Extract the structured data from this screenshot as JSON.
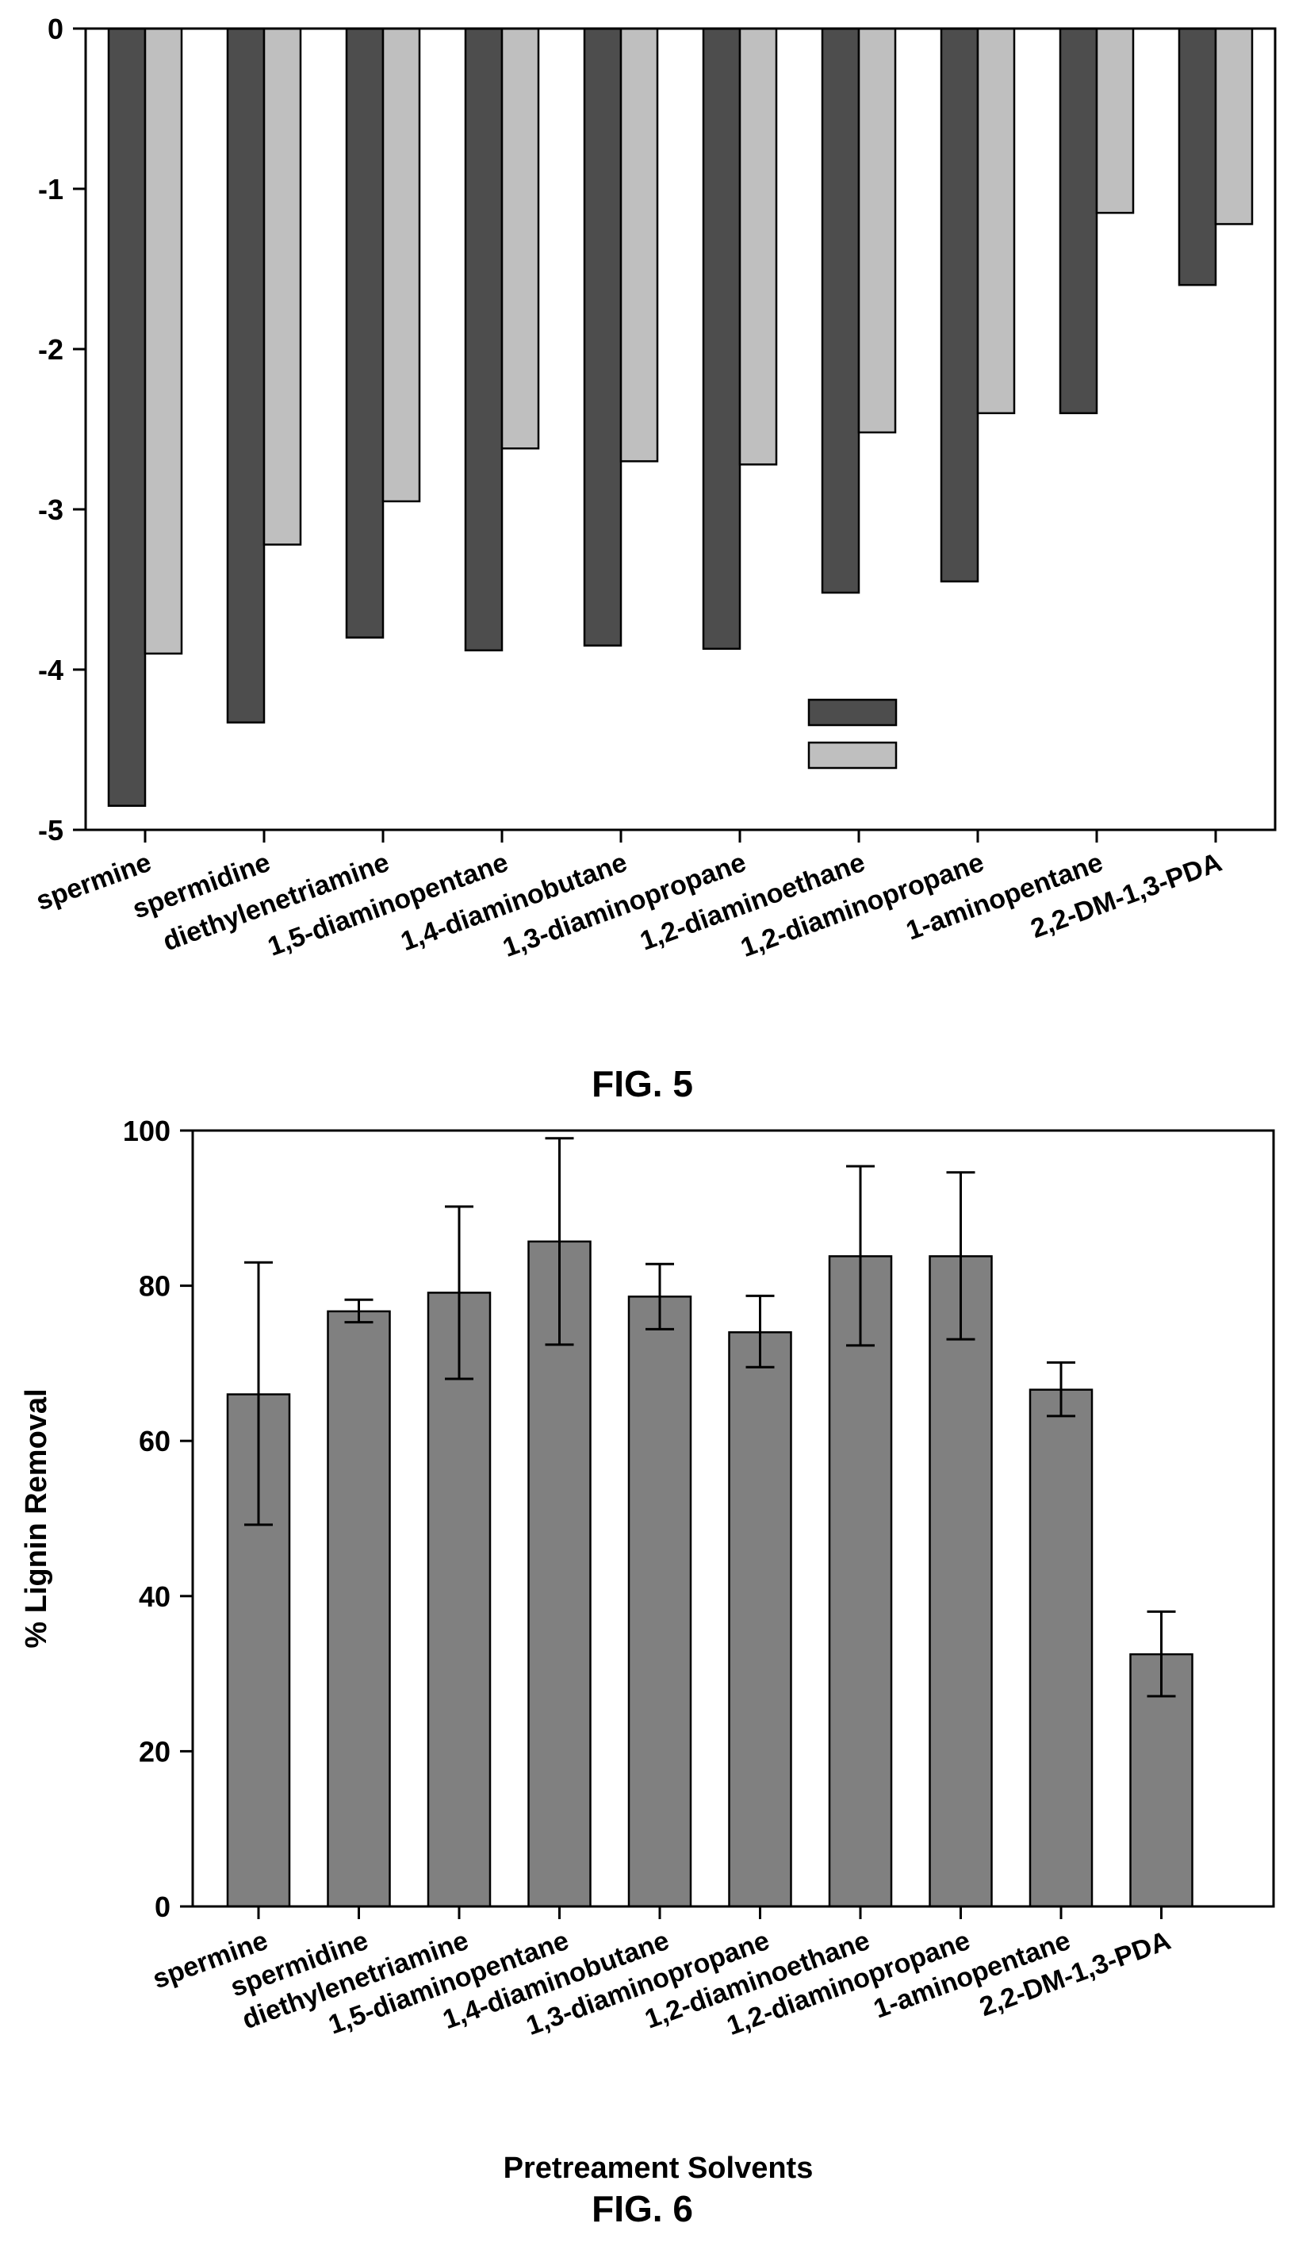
{
  "chart_data": [
    {
      "type": "bar",
      "figure_label": "FIG. 5",
      "xlabel": "",
      "ylabel": "",
      "ylim": [
        -5,
        0
      ],
      "yticks": [
        0,
        -1,
        -2,
        -3,
        -4,
        -5
      ],
      "grid": false,
      "legend": "inset, center-lower, unlabeled swatches",
      "categories": [
        "spermine",
        "spermidine",
        "diethylenetriamine",
        "1,5-diaminopentane",
        "1,4-diaminobutane",
        "1,3-diaminopropane",
        "1,2-diaminoethane",
        "1,2-diaminopropane",
        "1-aminopentane",
        "2,2-DM-1,3-PDA"
      ],
      "series": [
        {
          "values": [
            -4.85,
            -4.33,
            -3.8,
            -3.88,
            -3.85,
            -3.87,
            -3.52,
            -3.45,
            -2.4,
            -1.6
          ],
          "color": "#4d4d4d"
        },
        {
          "values": [
            -3.9,
            -3.22,
            -2.95,
            -2.62,
            -2.7,
            -2.72,
            -2.52,
            -2.4,
            -1.15,
            -1.22
          ],
          "color": "#bfbfbf"
        }
      ]
    },
    {
      "type": "bar",
      "figure_label": "FIG. 6",
      "xlabel": "Pretreament Solvents",
      "ylabel": "% Lignin Removal",
      "ylim": [
        0,
        100
      ],
      "yticks": [
        0,
        20,
        40,
        60,
        80,
        100
      ],
      "grid": false,
      "categories": [
        "spermine",
        "spermidine",
        "diethylenetriamine",
        "1,5-diaminopentane",
        "1,4-diaminobutane",
        "1,3-diaminopropane",
        "1,2-diaminoethane",
        "1,2-diaminopropane",
        "1-aminopentane",
        "2,2-DM-1,3-PDA"
      ],
      "values": [
        66,
        76.7,
        79.1,
        85.7,
        78.6,
        74,
        83.8,
        83.8,
        66.6,
        32.5
      ],
      "error_low": [
        49.2,
        75.3,
        68,
        72.4,
        74.4,
        69.5,
        72.3,
        73.1,
        63.2,
        27.1
      ],
      "error_high": [
        83,
        78.2,
        90.2,
        99,
        82.8,
        78.7,
        95.4,
        94.6,
        70.1,
        38
      ],
      "color": "#808080"
    }
  ]
}
